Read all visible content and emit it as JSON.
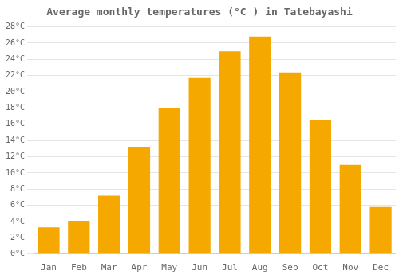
{
  "chart_data": {
    "type": "bar",
    "title": "Average monthly temperatures (°C ) in Tatebayashi",
    "categories": [
      "Jan",
      "Feb",
      "Mar",
      "Apr",
      "May",
      "Jun",
      "Jul",
      "Aug",
      "Sep",
      "Oct",
      "Nov",
      "Dec"
    ],
    "values": [
      3.3,
      4.1,
      7.2,
      13.2,
      18.0,
      21.7,
      25.0,
      26.8,
      22.4,
      16.5,
      11.0,
      5.8
    ],
    "color": "#F5A800",
    "ylim": [
      0,
      28
    ],
    "yticks": [
      {
        "value": 0,
        "label": "0°C"
      },
      {
        "value": 2,
        "label": "2°C"
      },
      {
        "value": 4,
        "label": "4°C"
      },
      {
        "value": 6,
        "label": "6°C"
      },
      {
        "value": 8,
        "label": "8°C"
      },
      {
        "value": 10,
        "label": "10°C"
      },
      {
        "value": 12,
        "label": "12°C"
      },
      {
        "value": 14,
        "label": "14°C"
      },
      {
        "value": 16,
        "label": "16°C"
      },
      {
        "value": 18,
        "label": "18°C"
      },
      {
        "value": 20,
        "label": "20°C"
      },
      {
        "value": 22,
        "label": "22°C"
      },
      {
        "value": 24,
        "label": "24°C"
      },
      {
        "value": 26,
        "label": "26°C"
      },
      {
        "value": 28,
        "label": "28°C"
      }
    ],
    "grid": true
  }
}
